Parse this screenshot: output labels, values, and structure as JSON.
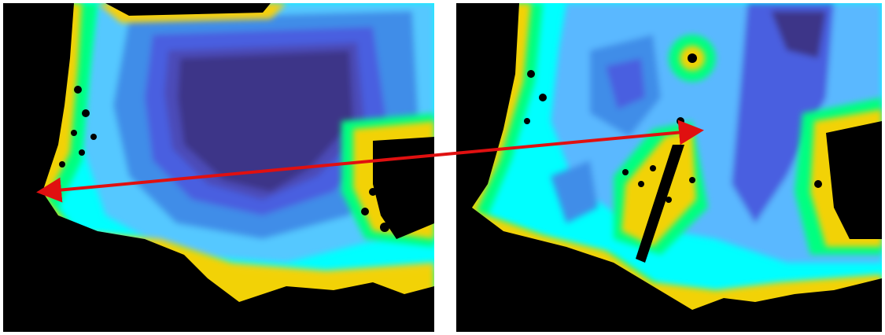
{
  "figure": {
    "panels": [
      {
        "id": "left",
        "description_key": "distance-field-before"
      },
      {
        "id": "right",
        "description_key": "distance-field-after"
      }
    ],
    "colormap": [
      "#000000",
      "#ffff00",
      "#00ff00",
      "#00ffff",
      "#3399ff",
      "#4a5ee0",
      "#4b3f9e",
      "#3a2a78"
    ],
    "arrow_color": "#e01010"
  }
}
